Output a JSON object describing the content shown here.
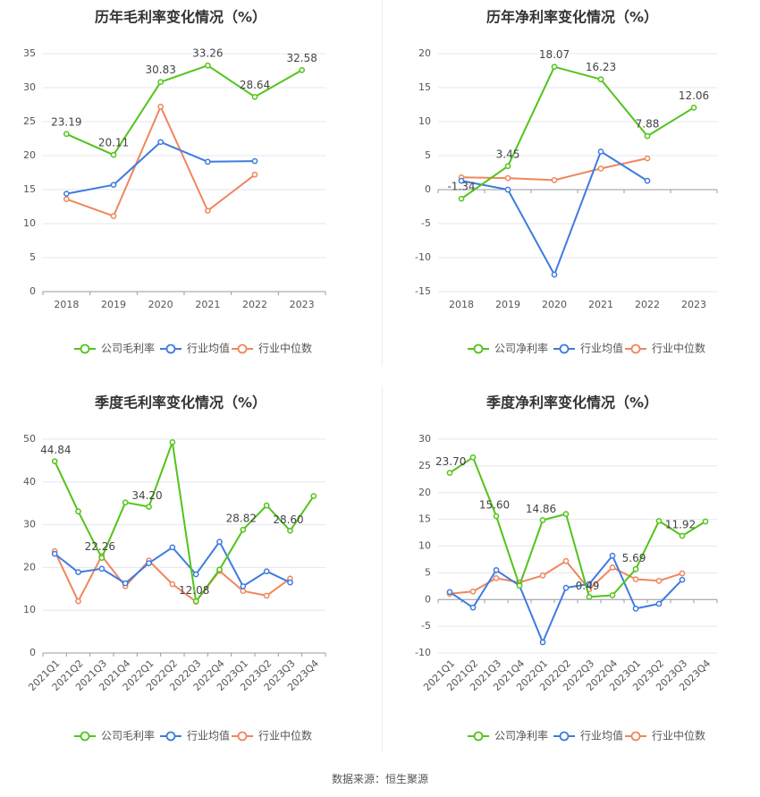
{
  "colors": {
    "company": "#52c41a",
    "avg": "#3e7be0",
    "median": "#f0865c",
    "grid": "#e6e6f0",
    "axis": "#9a9aa5",
    "text": "#555555",
    "title": "#333333"
  },
  "legend": {
    "gross": [
      "公司毛利率",
      "行业均值",
      "行业中位数"
    ],
    "net": [
      "公司净利率",
      "行业均值",
      "行业中位数"
    ]
  },
  "source_text": "数据来源：恒生聚源",
  "chart_data": [
    {
      "type": "line",
      "title": "历年毛利率变化情况（%）",
      "categories": [
        "2018",
        "2019",
        "2020",
        "2021",
        "2022",
        "2023"
      ],
      "ylim": [
        0,
        35
      ],
      "yticks": [
        0,
        5,
        10,
        15,
        20,
        25,
        30,
        35
      ],
      "rotate_x": false,
      "series": [
        {
          "name": "公司毛利率",
          "values": [
            23.19,
            20.11,
            30.83,
            33.26,
            28.64,
            32.58
          ],
          "labels": [
            "23.19",
            "20.11",
            "30.83",
            "33.26",
            "28.64",
            "32.58"
          ]
        },
        {
          "name": "行业均值",
          "values": [
            14.4,
            15.7,
            22.0,
            19.1,
            19.2,
            null
          ]
        },
        {
          "name": "行业中位数",
          "values": [
            13.6,
            11.1,
            27.2,
            11.9,
            17.2,
            null
          ]
        }
      ]
    },
    {
      "type": "line",
      "title": "历年净利率变化情况（%）",
      "categories": [
        "2018",
        "2019",
        "2020",
        "2021",
        "2022",
        "2023"
      ],
      "ylim": [
        -15,
        20
      ],
      "yticks": [
        -15,
        -10,
        -5,
        0,
        5,
        10,
        15,
        20
      ],
      "rotate_x": false,
      "series": [
        {
          "name": "公司净利率",
          "values": [
            -1.34,
            3.45,
            18.07,
            16.23,
            7.88,
            12.06
          ],
          "labels": [
            "-1.34",
            "3.45",
            "18.07",
            "16.23",
            "7.88",
            "12.06"
          ]
        },
        {
          "name": "行业均值",
          "values": [
            1.3,
            0.0,
            -12.5,
            5.6,
            1.3,
            null
          ]
        },
        {
          "name": "行业中位数",
          "values": [
            1.8,
            1.7,
            1.4,
            3.1,
            4.6,
            null
          ]
        }
      ]
    },
    {
      "type": "line",
      "title": "季度毛利率变化情况（%）",
      "categories": [
        "2021Q1",
        "2021Q2",
        "2021Q3",
        "2021Q4",
        "2022Q1",
        "2022Q2",
        "2022Q3",
        "2022Q4",
        "2023Q1",
        "2023Q2",
        "2023Q3",
        "2023Q4"
      ],
      "ylim": [
        0,
        50
      ],
      "yticks": [
        0,
        10,
        20,
        30,
        40,
        50
      ],
      "rotate_x": true,
      "series": [
        {
          "name": "公司毛利率",
          "values": [
            44.84,
            33.1,
            22.26,
            35.2,
            34.2,
            49.3,
            12.08,
            19.5,
            28.82,
            34.5,
            28.6,
            36.7
          ],
          "labels": [
            "44.84",
            null,
            "22.26",
            null,
            "34.20",
            null,
            "12.08",
            null,
            "28.82",
            null,
            "28.60",
            null
          ]
        },
        {
          "name": "行业均值",
          "values": [
            23.2,
            18.9,
            19.7,
            16.3,
            21.0,
            24.7,
            18.4,
            26.0,
            15.6,
            19.1,
            16.5,
            null
          ]
        },
        {
          "name": "行业中位数",
          "values": [
            23.8,
            12.1,
            22.7,
            15.6,
            21.6,
            16.1,
            12.0,
            19.2,
            14.5,
            13.4,
            17.4,
            null
          ]
        }
      ]
    },
    {
      "type": "line",
      "title": "季度净利率变化情况（%）",
      "categories": [
        "2021Q1",
        "2021Q2",
        "2021Q3",
        "2021Q4",
        "2022Q1",
        "2022Q2",
        "2022Q3",
        "2022Q4",
        "2023Q1",
        "2023Q2",
        "2023Q3",
        "2023Q4"
      ],
      "ylim": [
        -10,
        30
      ],
      "yticks": [
        -10,
        -5,
        0,
        5,
        10,
        15,
        20,
        25,
        30
      ],
      "rotate_x": true,
      "series": [
        {
          "name": "公司净利率",
          "values": [
            23.7,
            26.6,
            15.6,
            2.6,
            14.86,
            16.0,
            0.49,
            0.8,
            5.69,
            14.7,
            11.92,
            14.6
          ],
          "labels": [
            "23.70",
            null,
            "15.60",
            null,
            "14.86",
            null,
            "0.49",
            null,
            "5.69",
            null,
            "11.92",
            null
          ]
        },
        {
          "name": "行业均值",
          "values": [
            1.4,
            -1.5,
            5.5,
            2.6,
            -8.0,
            2.2,
            2.9,
            8.2,
            -1.7,
            -0.8,
            3.7,
            null
          ]
        },
        {
          "name": "行业中位数",
          "values": [
            1.1,
            1.5,
            4.0,
            3.2,
            4.5,
            7.2,
            1.9,
            6.0,
            3.8,
            3.5,
            4.9,
            null
          ]
        }
      ]
    }
  ]
}
